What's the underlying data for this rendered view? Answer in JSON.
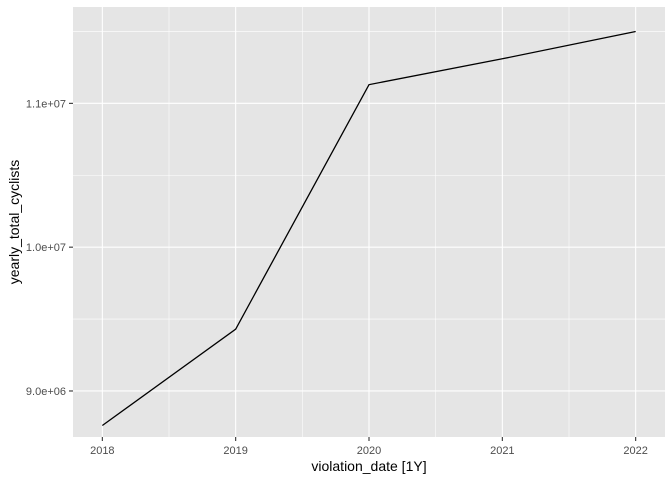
{
  "chart_data": {
    "type": "line",
    "title": "",
    "xlabel": "violation_date [1Y]",
    "ylabel": "yearly_total_cyclists",
    "x": [
      2018,
      2019,
      2020,
      2021,
      2022
    ],
    "x_tick_labels": [
      "2018",
      "2019",
      "2020",
      "2021",
      "2022"
    ],
    "xlim": [
      2017.78,
      2022.22
    ],
    "ylim": [
      8680000,
      11670000
    ],
    "y_ticks": [
      9000000,
      10000000,
      11000000
    ],
    "y_tick_labels": [
      "9.0e+06",
      "1.0e+07",
      "1.1e+07"
    ],
    "series": [
      {
        "values": [
          8760000,
          9430000,
          11130000,
          11310000,
          11500000
        ]
      }
    ],
    "grid": true,
    "legend": "none",
    "colors": {
      "panel_background": "#e5e5e5",
      "grid_major": "#ffffff",
      "line": "#000000",
      "tick_text": "#4d4d4d"
    }
  }
}
